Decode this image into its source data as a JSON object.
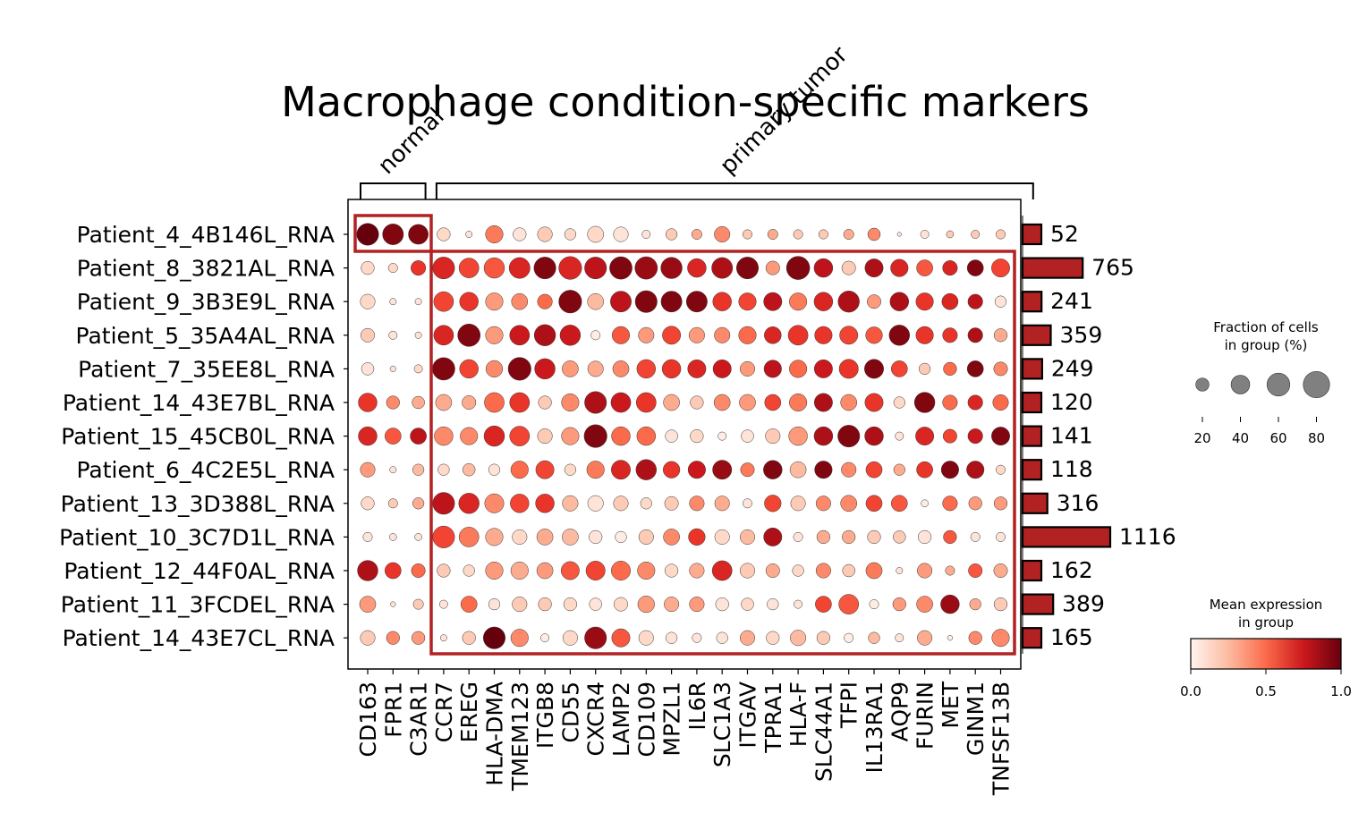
{
  "chart_data": {
    "type": "dotplot",
    "title": "Macrophage condition-specific markers",
    "groups": [
      {
        "label": "normal",
        "start": 0,
        "end": 2
      },
      {
        "label": "primary tumor",
        "start": 3,
        "end": 26
      }
    ],
    "genes": [
      "CD163",
      "FPR1",
      "C3AR1",
      "CCR7",
      "EREG",
      "HLA-DMA",
      "TMEM123",
      "ITGB8",
      "CD55",
      "CXCR4",
      "LAMP2",
      "CD109",
      "MPZL1",
      "IL6R",
      "SLC1A3",
      "ITGAV",
      "TPRA1",
      "HLA-F",
      "SLC44A1",
      "TFPI",
      "IL13RA1",
      "AQP9",
      "FURIN",
      "MET",
      "GINM1",
      "TNFSF13B"
    ],
    "samples": [
      "Patient_4_4B146L_RNA",
      "Patient_8_3821AL_RNA",
      "Patient_9_3B3E9L_RNA",
      "Patient_5_35A4AL_RNA",
      "Patient_7_35EE8L_RNA",
      "Patient_14_43E7BL_RNA",
      "Patient_15_45CB0L_RNA",
      "Patient_6_4C2E5L_RNA",
      "Patient_13_3D388L_RNA",
      "Patient_10_3C7D1L_RNA",
      "Patient_12_44F0AL_RNA",
      "Patient_11_3FCDEL_RNA",
      "Patient_14_43E7CL_RNA"
    ],
    "cell_counts": [
      52,
      765,
      241,
      359,
      249,
      120,
      141,
      118,
      316,
      1116,
      162,
      389,
      165
    ],
    "fraction_pct": [
      [
        55,
        50,
        45,
        20,
        5,
        35,
        20,
        25,
        15,
        30,
        25,
        8,
        15,
        12,
        28,
        10,
        12,
        10,
        10,
        12,
        18,
        2,
        8,
        6,
        8,
        10
      ],
      [
        20,
        10,
        25,
        55,
        45,
        48,
        50,
        55,
        60,
        55,
        58,
        58,
        52,
        40,
        50,
        55,
        22,
        62,
        40,
        22,
        38,
        35,
        30,
        25,
        30,
        38
      ],
      [
        25,
        5,
        5,
        45,
        40,
        35,
        30,
        25,
        60,
        30,
        50,
        55,
        50,
        50,
        40,
        35,
        38,
        35,
        40,
        52,
        22,
        40,
        35,
        30,
        25,
        15
      ],
      [
        22,
        8,
        5,
        45,
        58,
        35,
        45,
        52,
        48,
        10,
        35,
        28,
        38,
        28,
        28,
        35,
        33,
        45,
        35,
        38,
        32,
        48,
        35,
        25,
        25,
        20
      ],
      [
        18,
        4,
        8,
        58,
        40,
        32,
        60,
        48,
        30,
        28,
        30,
        40,
        40,
        38,
        38,
        25,
        35,
        35,
        38,
        42,
        42,
        30,
        15,
        20,
        30,
        22
      ],
      [
        40,
        20,
        18,
        30,
        22,
        45,
        45,
        20,
        35,
        55,
        45,
        45,
        30,
        20,
        30,
        30,
        30,
        35,
        38,
        30,
        38,
        15,
        48,
        25,
        25,
        28
      ],
      [
        40,
        30,
        30,
        40,
        35,
        48,
        45,
        25,
        35,
        60,
        40,
        40,
        18,
        20,
        8,
        18,
        25,
        40,
        40,
        55,
        40,
        8,
        38,
        22,
        25,
        38
      ],
      [
        25,
        5,
        15,
        15,
        18,
        15,
        35,
        38,
        15,
        35,
        42,
        48,
        32,
        35,
        42,
        22,
        40,
        30,
        35,
        25,
        30,
        15,
        30,
        35,
        35,
        10
      ],
      [
        20,
        10,
        15,
        55,
        48,
        42,
        40,
        40,
        28,
        28,
        25,
        15,
        22,
        25,
        25,
        10,
        32,
        25,
        25,
        30,
        30,
        30,
        6,
        25,
        20,
        20
      ],
      [
        10,
        6,
        6,
        55,
        45,
        35,
        25,
        30,
        30,
        20,
        15,
        25,
        30,
        32,
        25,
        25,
        38,
        10,
        20,
        20,
        20,
        18,
        20,
        20,
        10,
        10
      ],
      [
        48,
        30,
        22,
        20,
        15,
        35,
        35,
        30,
        38,
        42,
        42,
        35,
        20,
        25,
        45,
        25,
        22,
        15,
        25,
        18,
        30,
        5,
        25,
        10,
        22,
        22
      ],
      [
        30,
        3,
        12,
        8,
        30,
        15,
        25,
        20,
        20,
        18,
        22,
        32,
        25,
        25,
        20,
        18,
        15,
        8,
        30,
        45,
        10,
        20,
        30,
        40,
        15,
        20
      ],
      [
        25,
        20,
        20,
        5,
        20,
        55,
        35,
        8,
        25,
        55,
        38,
        25,
        15,
        10,
        15,
        25,
        20,
        28,
        20,
        10,
        15,
        8,
        25,
        3,
        20,
        35
      ]
    ],
    "mean_expression": [
      [
        1.0,
        0.95,
        0.95,
        0.15,
        0.1,
        0.45,
        0.1,
        0.2,
        0.15,
        0.15,
        0.1,
        0.1,
        0.2,
        0.3,
        0.4,
        0.2,
        0.3,
        0.2,
        0.2,
        0.3,
        0.4,
        0.1,
        0.1,
        0.2,
        0.2,
        0.2
      ],
      [
        0.15,
        0.15,
        0.65,
        0.7,
        0.6,
        0.55,
        0.7,
        0.95,
        0.7,
        0.8,
        0.95,
        0.9,
        0.9,
        0.7,
        0.85,
        0.95,
        0.35,
        0.95,
        0.8,
        0.2,
        0.85,
        0.7,
        0.55,
        0.7,
        0.95,
        0.6
      ],
      [
        0.15,
        0.1,
        0.1,
        0.6,
        0.65,
        0.35,
        0.4,
        0.5,
        0.95,
        0.25,
        0.8,
        0.95,
        0.95,
        0.95,
        0.65,
        0.6,
        0.8,
        0.45,
        0.7,
        0.85,
        0.35,
        0.85,
        0.65,
        0.7,
        0.8,
        0.1
      ],
      [
        0.2,
        0.1,
        0.1,
        0.7,
        0.95,
        0.35,
        0.75,
        0.85,
        0.75,
        0.05,
        0.55,
        0.35,
        0.6,
        0.35,
        0.4,
        0.5,
        0.7,
        0.65,
        0.65,
        0.6,
        0.55,
        0.95,
        0.65,
        0.65,
        0.85,
        0.3
      ],
      [
        0.1,
        0.1,
        0.15,
        0.95,
        0.6,
        0.4,
        0.95,
        0.75,
        0.35,
        0.3,
        0.4,
        0.6,
        0.65,
        0.7,
        0.75,
        0.35,
        0.8,
        0.5,
        0.75,
        0.65,
        0.95,
        0.6,
        0.2,
        0.5,
        0.95,
        0.4
      ],
      [
        0.65,
        0.4,
        0.3,
        0.3,
        0.3,
        0.5,
        0.65,
        0.2,
        0.4,
        0.85,
        0.75,
        0.65,
        0.3,
        0.2,
        0.4,
        0.35,
        0.6,
        0.45,
        0.85,
        0.4,
        0.65,
        0.15,
        0.95,
        0.5,
        0.7,
        0.5
      ],
      [
        0.7,
        0.55,
        0.8,
        0.4,
        0.4,
        0.7,
        0.6,
        0.2,
        0.35,
        0.95,
        0.5,
        0.5,
        0.1,
        0.15,
        0.05,
        0.1,
        0.2,
        0.35,
        0.85,
        0.95,
        0.85,
        0.1,
        0.7,
        0.6,
        0.75,
        0.95
      ],
      [
        0.35,
        0.1,
        0.25,
        0.15,
        0.25,
        0.1,
        0.5,
        0.6,
        0.15,
        0.45,
        0.7,
        0.85,
        0.65,
        0.75,
        0.9,
        0.45,
        0.95,
        0.25,
        0.95,
        0.4,
        0.6,
        0.3,
        0.65,
        0.95,
        0.85,
        0.15
      ],
      [
        0.15,
        0.2,
        0.3,
        0.8,
        0.7,
        0.4,
        0.6,
        0.65,
        0.25,
        0.1,
        0.2,
        0.15,
        0.2,
        0.4,
        0.3,
        0.1,
        0.6,
        0.2,
        0.4,
        0.4,
        0.6,
        0.55,
        0.05,
        0.5,
        0.35,
        0.35
      ],
      [
        0.1,
        0.1,
        0.1,
        0.6,
        0.45,
        0.3,
        0.15,
        0.3,
        0.25,
        0.1,
        0.05,
        0.2,
        0.4,
        0.65,
        0.15,
        0.25,
        0.85,
        0.1,
        0.3,
        0.3,
        0.2,
        0.2,
        0.1,
        0.55,
        0.1,
        0.1
      ],
      [
        0.85,
        0.65,
        0.5,
        0.2,
        0.15,
        0.35,
        0.3,
        0.35,
        0.55,
        0.6,
        0.5,
        0.4,
        0.15,
        0.3,
        0.7,
        0.2,
        0.3,
        0.15,
        0.4,
        0.2,
        0.45,
        0.1,
        0.35,
        0.3,
        0.55,
        0.3
      ],
      [
        0.35,
        0.1,
        0.2,
        0.1,
        0.5,
        0.1,
        0.2,
        0.2,
        0.15,
        0.1,
        0.15,
        0.35,
        0.3,
        0.35,
        0.1,
        0.15,
        0.1,
        0.1,
        0.6,
        0.55,
        0.05,
        0.35,
        0.4,
        0.9,
        0.3,
        0.2
      ],
      [
        0.2,
        0.4,
        0.35,
        0.1,
        0.2,
        1.0,
        0.4,
        0.05,
        0.15,
        0.9,
        0.55,
        0.15,
        0.1,
        0.1,
        0.1,
        0.3,
        0.15,
        0.25,
        0.2,
        0.05,
        0.25,
        0.1,
        0.3,
        0.05,
        0.4,
        0.4
      ]
    ],
    "size_legend": {
      "title_line1": "Fraction of cells",
      "title_line2": "in group (%)",
      "ticks": [
        "20",
        "40",
        "60",
        "80"
      ]
    },
    "color_legend": {
      "title_line1": "Mean expression",
      "title_line2": "in group",
      "ticks": [
        "0.0",
        "0.5",
        "1.0"
      ],
      "colormap": "Reds"
    },
    "highlight_color": "#b22222",
    "bar_color": "#b22222"
  }
}
